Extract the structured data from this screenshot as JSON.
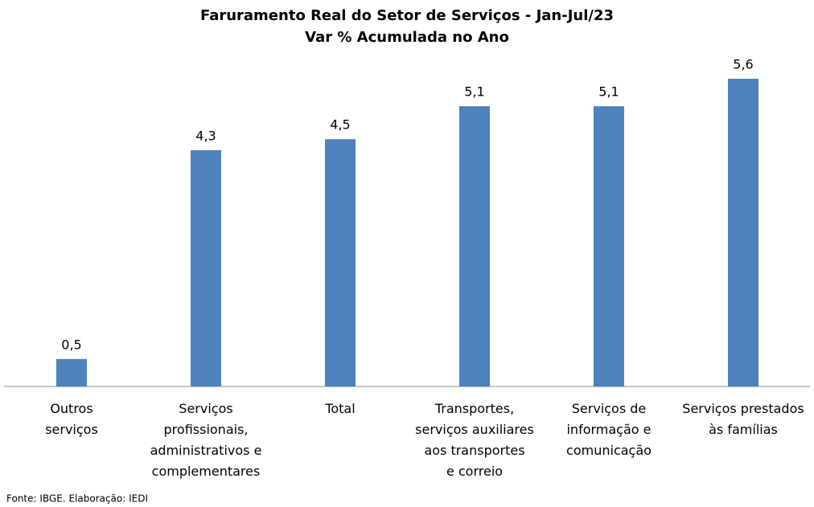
{
  "chart_data": {
    "type": "bar",
    "title": "Faruramento Real do Setor de Serviços - Jan-Jul/23",
    "subtitle": "Var % Acumulada no Ano",
    "categories": [
      "Outros\nserviços",
      "Serviços\nprofissionais,\nadministrativos e\ncomplementares",
      "Total",
      "Transportes,\nserviços auxiliares\naos transportes\ne correio",
      "Serviços de\ninformação e\ncomunicação",
      "Serviços prestados\nàs famílias"
    ],
    "values": [
      0.5,
      4.3,
      4.5,
      5.1,
      5.1,
      5.6
    ],
    "value_labels": [
      "0,5",
      "4,3",
      "4,5",
      "5,1",
      "5,1",
      "5,6"
    ],
    "color": "#4f81bd",
    "source": "Fonte: IBGE. Elaboração: IEDI"
  }
}
